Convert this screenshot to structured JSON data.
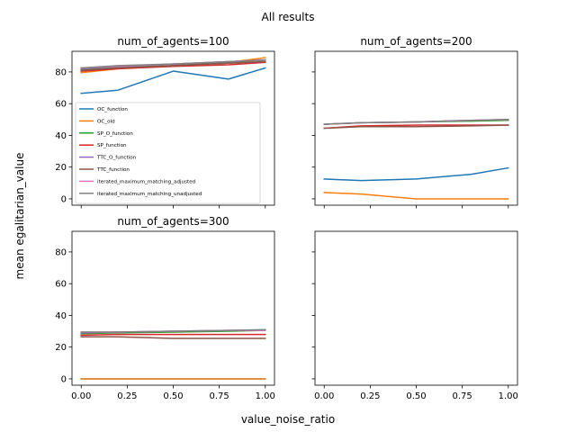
{
  "chart_data": {
    "type": "line",
    "title": "All results",
    "xlabel": "value_noise_ratio",
    "ylabel": "mean egalitarian_value",
    "x": [
      0.0,
      0.2,
      0.5,
      0.8,
      1.0
    ],
    "xlim": [
      -0.05,
      1.05
    ],
    "ylim": [
      -4,
      93
    ],
    "xticks": [
      "0.00",
      "0.25",
      "0.50",
      "0.75",
      "1.00"
    ],
    "yticks": [
      "0",
      "20",
      "40",
      "60",
      "80"
    ],
    "shared_axes": true,
    "grid": false,
    "legend_location": "center-right, inside first panel",
    "series_names": [
      "OC_function",
      "OC_old",
      "SP_O_function",
      "SP_function",
      "TTC_O_function",
      "TTC_function",
      "iterated_maximum_matching_adjusted",
      "iterated_maximum_matching_unadjusted"
    ],
    "series_colors": [
      "#1f77b4",
      "#ff7f0e",
      "#2ca02c",
      "#d62728",
      "#9467bd",
      "#8c564b",
      "#e377c2",
      "#7f7f7f"
    ],
    "panels": [
      {
        "title": "num_of_agents=100",
        "series": [
          {
            "name": "OC_function",
            "values": [
              66.5,
              68.5,
              80.5,
              75.5,
              82.5
            ]
          },
          {
            "name": "OC_old",
            "values": [
              79.5,
              82,
              84,
              86,
              89
            ]
          },
          {
            "name": "SP_O_function",
            "values": [
              81.5,
              83,
              84,
              86,
              87.5
            ]
          },
          {
            "name": "SP_function",
            "values": [
              80.5,
              82,
              83.5,
              84.5,
              86
            ]
          },
          {
            "name": "TTC_O_function",
            "values": [
              82,
              83.5,
              85,
              86.5,
              87.5
            ]
          },
          {
            "name": "TTC_function",
            "values": [
              81,
              82.5,
              84,
              85.5,
              86.5
            ]
          },
          {
            "name": "iterated_maximum_matching_adjusted",
            "values": [
              82.5,
              83.5,
              85,
              86.5,
              87.5
            ]
          },
          {
            "name": "iterated_maximum_matching_unadjusted",
            "values": [
              82.5,
              84,
              85,
              86.5,
              87.5
            ]
          }
        ]
      },
      {
        "title": "num_of_agents=200",
        "series": [
          {
            "name": "OC_function",
            "values": [
              12.5,
              11.5,
              12.5,
              15.5,
              19.5
            ]
          },
          {
            "name": "OC_old",
            "values": [
              4,
              3,
              0,
              0,
              0
            ]
          },
          {
            "name": "SP_O_function",
            "values": [
              47,
              48,
              48.5,
              49,
              49.5
            ]
          },
          {
            "name": "SP_function",
            "values": [
              44.5,
              46,
              46.5,
              46.5,
              46.5
            ]
          },
          {
            "name": "TTC_O_function",
            "values": [
              47,
              48,
              48.5,
              49.5,
              50
            ]
          },
          {
            "name": "TTC_function",
            "values": [
              44.5,
              45.5,
              45.5,
              46,
              46.5
            ]
          },
          {
            "name": "iterated_maximum_matching_adjusted",
            "values": [
              47,
              48,
              48.5,
              49.5,
              50
            ]
          },
          {
            "name": "iterated_maximum_matching_unadjusted",
            "values": [
              47,
              48,
              48.5,
              49.5,
              50
            ]
          }
        ]
      },
      {
        "title": "num_of_agents=300",
        "series": [
          {
            "name": "OC_function",
            "values": [
              0,
              0,
              0,
              0,
              0
            ]
          },
          {
            "name": "OC_old",
            "values": [
              0,
              0,
              0,
              0,
              0
            ]
          },
          {
            "name": "SP_O_function",
            "values": [
              28.5,
              29,
              29.5,
              30,
              30.5
            ]
          },
          {
            "name": "SP_function",
            "values": [
              27.5,
              28,
              28,
              28,
              28
            ]
          },
          {
            "name": "TTC_O_function",
            "values": [
              29,
              29.5,
              30,
              30.5,
              30.5
            ]
          },
          {
            "name": "TTC_function",
            "values": [
              26.5,
              26.5,
              25.5,
              25.5,
              25.5
            ]
          },
          {
            "name": "iterated_maximum_matching_adjusted",
            "values": [
              29.5,
              29.5,
              30,
              30.5,
              30.5
            ]
          },
          {
            "name": "iterated_maximum_matching_unadjusted",
            "values": [
              29.5,
              29.5,
              30,
              30.5,
              31
            ]
          }
        ]
      },
      {
        "title": "",
        "series": []
      }
    ]
  }
}
